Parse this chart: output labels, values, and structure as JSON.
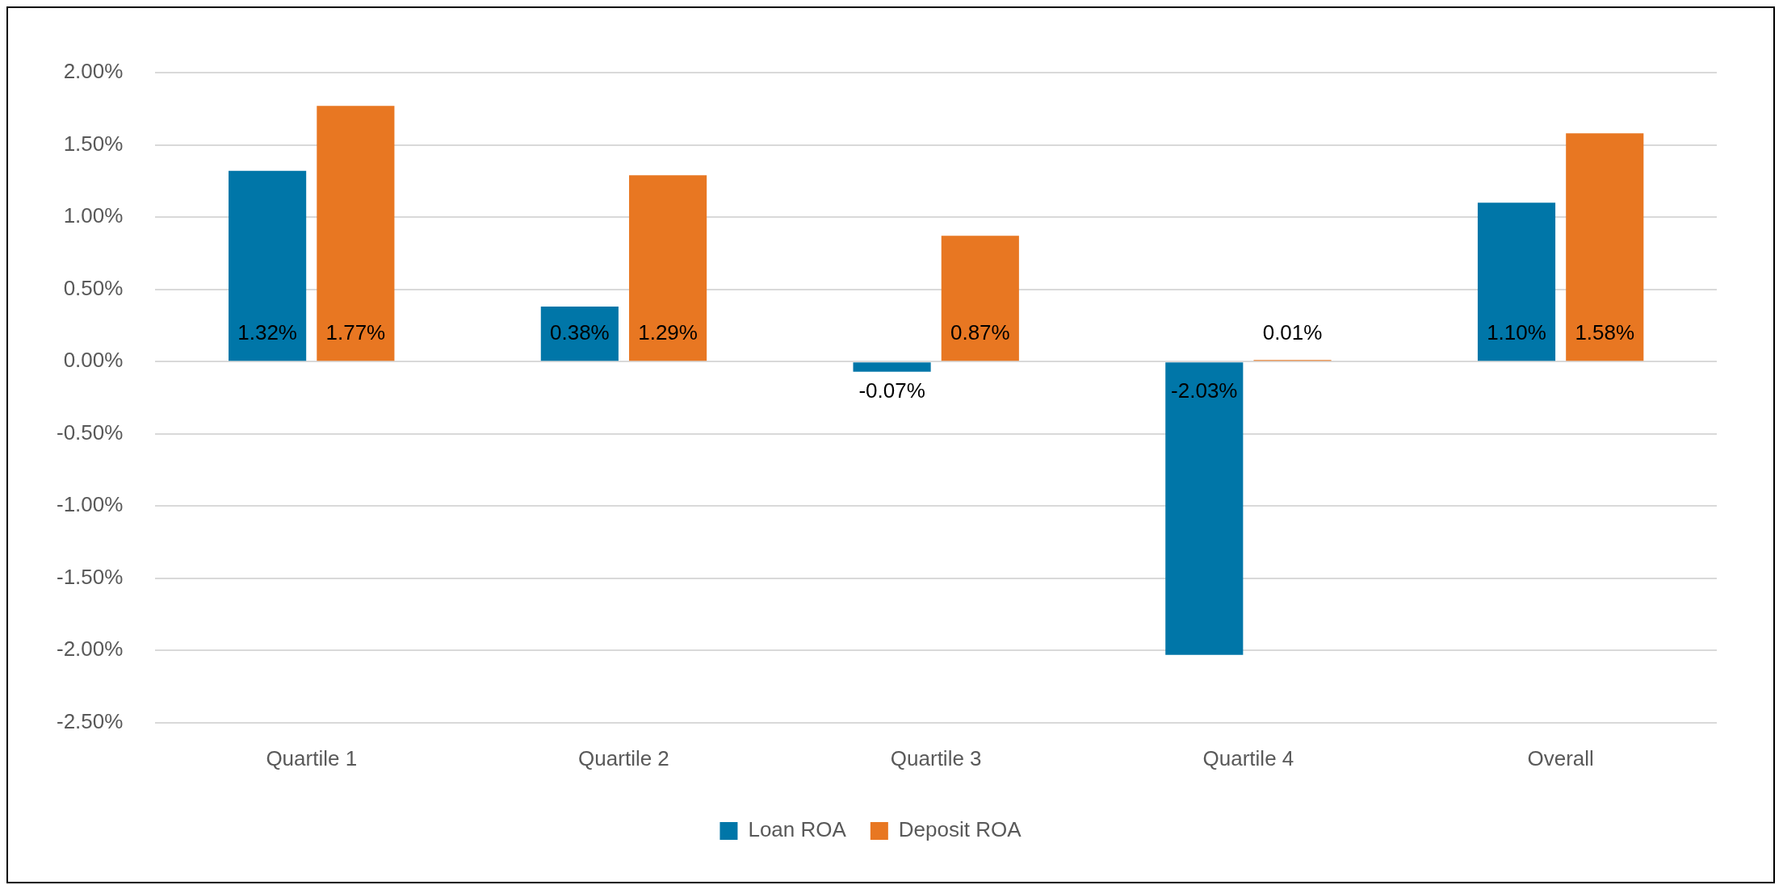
{
  "chart_data": {
    "type": "bar",
    "categories": [
      "Quartile 1",
      "Quartile 2",
      "Quartile 3",
      "Quartile 4",
      "Overall"
    ],
    "series": [
      {
        "name": "Loan ROA",
        "color": "#0076a8",
        "values": [
          1.32,
          0.38,
          -0.07,
          -2.03,
          1.1
        ],
        "value_labels": [
          "1.32%",
          "0.38%",
          "-0.07%",
          "-2.03%",
          "1.10%"
        ]
      },
      {
        "name": "Deposit ROA",
        "color": "#e87722",
        "values": [
          1.77,
          1.29,
          0.87,
          0.01,
          1.58
        ],
        "value_labels": [
          "1.77%",
          "1.29%",
          "0.87%",
          "0.01%",
          "1.58%"
        ]
      }
    ],
    "ylim": [
      -2.5,
      2.0
    ],
    "yticks": [
      {
        "value": -2.5,
        "label": "-2.50%"
      },
      {
        "value": -2,
        "label": "-2.00%"
      },
      {
        "value": -1.5,
        "label": "-1.50%"
      },
      {
        "value": -1,
        "label": "-1.00%"
      },
      {
        "value": -0.5,
        "label": "-0.50%"
      },
      {
        "value": 0,
        "label": "0.00%"
      },
      {
        "value": 0.5,
        "label": "0.50%"
      },
      {
        "value": 1,
        "label": "1.00%"
      },
      {
        "value": 1.5,
        "label": "1.50%"
      },
      {
        "value": 2,
        "label": "2.00%"
      }
    ],
    "grid": "y",
    "legend": "bottom"
  }
}
